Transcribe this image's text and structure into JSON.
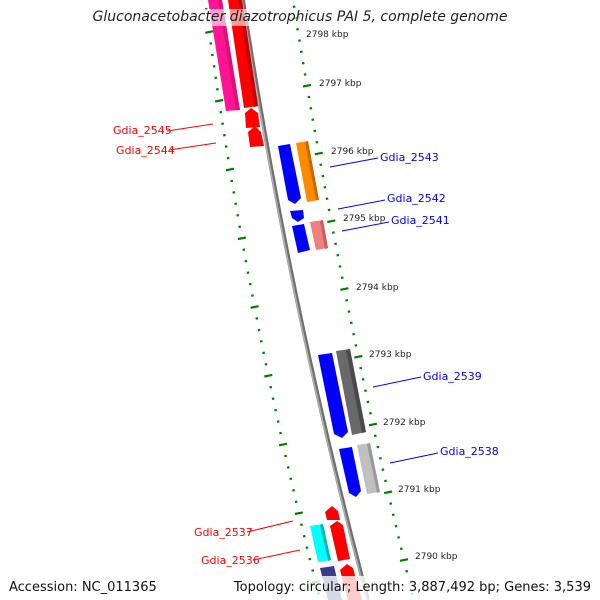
{
  "title": "Gluconacetobacter diazotrophicus PAI 5, complete genome",
  "footer": {
    "accession": "Accession: NC_011365",
    "topology": "Topology: circular; Length: 3,887,492 bp; Genes: 3,539"
  },
  "ruler_labels": [
    "2798 kbp",
    "2797 kbp",
    "2796 kbp",
    "2795 kbp",
    "2794 kbp",
    "2793 kbp",
    "2792 kbp",
    "2791 kbp",
    "2790 kbp"
  ],
  "gene_labels": {
    "left": [
      "Gdia_2545",
      "Gdia_2544",
      "Gdia_2537",
      "Gdia_2536"
    ],
    "right": [
      "Gdia_2543",
      "Gdia_2542",
      "Gdia_2541",
      "Gdia_2539",
      "Gdia_2538"
    ]
  },
  "colors": {
    "reverse_label": "#ff0000",
    "forward_label": "#0000ff",
    "ruler": "#008000",
    "backbone": "#808080"
  }
}
